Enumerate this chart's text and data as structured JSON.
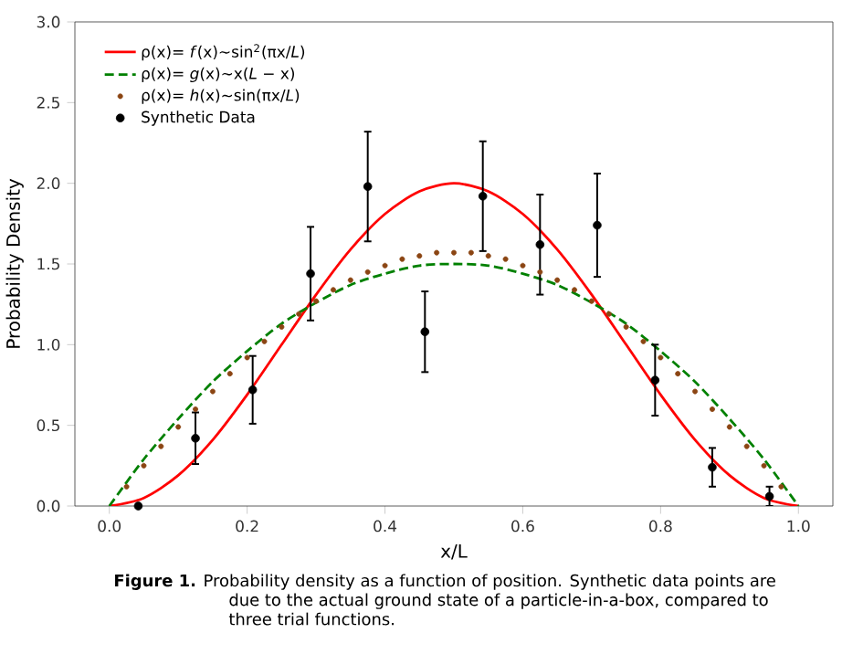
{
  "chart_data": {
    "type": "line",
    "xlabel": "x/L",
    "ylabel": "Probability Density",
    "xlim": [
      -0.05,
      1.05
    ],
    "ylim": [
      0,
      3
    ],
    "xticks": [
      {
        "value": 0,
        "label": "0.0"
      },
      {
        "value": 0.2,
        "label": "0.2"
      },
      {
        "value": 0.4,
        "label": "0.4"
      },
      {
        "value": 0.6,
        "label": "0.6"
      },
      {
        "value": 0.8,
        "label": "0.8"
      },
      {
        "value": 1,
        "label": "1.0"
      }
    ],
    "yticks": [
      {
        "value": 0,
        "label": "0.0"
      },
      {
        "value": 0.5,
        "label": "0.5"
      },
      {
        "value": 1,
        "label": "1.0"
      },
      {
        "value": 1.5,
        "label": "1.5"
      },
      {
        "value": 2,
        "label": "2.0"
      },
      {
        "value": 2.5,
        "label": "2.5"
      },
      {
        "value": 3,
        "label": "3.0"
      }
    ],
    "legend": "top left",
    "grid": false,
    "series": [
      {
        "name": "ρ(x)= *f*(x)∼sin$^{2}$(πx/*L*)",
        "color": "#ff0000",
        "line_style": "solid",
        "marker": "none",
        "x": [
          0,
          0.05,
          0.1,
          0.15,
          0.2,
          0.25,
          0.3,
          0.35,
          0.4,
          0.45,
          0.5,
          0.55,
          0.6,
          0.65,
          0.7,
          0.75,
          0.8,
          0.85,
          0.9,
          0.95,
          1
        ],
        "values": [
          0,
          0.05,
          0.19,
          0.41,
          0.69,
          1.0,
          1.31,
          1.59,
          1.81,
          1.95,
          2.0,
          1.95,
          1.81,
          1.59,
          1.31,
          1.0,
          0.69,
          0.41,
          0.19,
          0.05,
          0
        ]
      },
      {
        "name": "ρ(x)= *g*(x)∼x(*L* − x)",
        "color": "#008000",
        "line_style": "dashed",
        "marker": "none",
        "x": [
          0,
          0.05,
          0.1,
          0.15,
          0.2,
          0.25,
          0.3,
          0.35,
          0.4,
          0.45,
          0.5,
          0.55,
          0.6,
          0.65,
          0.7,
          0.75,
          0.8,
          0.85,
          0.9,
          0.95,
          1
        ],
        "values": [
          0,
          0.29,
          0.54,
          0.77,
          0.96,
          1.13,
          1.26,
          1.37,
          1.44,
          1.49,
          1.5,
          1.49,
          1.44,
          1.37,
          1.26,
          1.13,
          0.96,
          0.77,
          0.54,
          0.29,
          0
        ]
      },
      {
        "name": "ρ(x)= *h*(x)∼sin(πx/*L*)",
        "type": "scatter",
        "marker": "circle",
        "color": "#8b4513",
        "x": [
          0.025,
          0.05,
          0.075,
          0.1,
          0.125,
          0.15,
          0.175,
          0.2,
          0.225,
          0.25,
          0.275,
          0.3,
          0.325,
          0.35,
          0.375,
          0.4,
          0.425,
          0.45,
          0.475,
          0.5,
          0.525,
          0.55,
          0.575,
          0.6,
          0.625,
          0.65,
          0.675,
          0.7,
          0.725,
          0.75,
          0.775,
          0.8,
          0.825,
          0.85,
          0.875,
          0.9,
          0.925,
          0.95,
          0.975
        ],
        "values": [
          0.12,
          0.25,
          0.37,
          0.49,
          0.6,
          0.71,
          0.82,
          0.92,
          1.02,
          1.11,
          1.19,
          1.27,
          1.34,
          1.4,
          1.45,
          1.49,
          1.53,
          1.55,
          1.57,
          1.57,
          1.57,
          1.55,
          1.53,
          1.49,
          1.45,
          1.4,
          1.34,
          1.27,
          1.19,
          1.11,
          1.02,
          0.92,
          0.82,
          0.71,
          0.6,
          0.49,
          0.37,
          0.25,
          0.12
        ]
      },
      {
        "name": "Synthetic Data",
        "type": "scatter",
        "marker": "circle",
        "color": "#000000",
        "x": [
          0.042,
          0.125,
          0.208,
          0.292,
          0.375,
          0.458,
          0.542,
          0.625,
          0.708,
          0.792,
          0.875,
          0.958
        ],
        "values": [
          0.0,
          0.42,
          0.72,
          1.44,
          1.98,
          1.08,
          1.92,
          1.62,
          1.74,
          0.78,
          0.24,
          0.06
        ],
        "errors": [
          null,
          0.16,
          0.21,
          0.29,
          0.34,
          0.25,
          0.34,
          0.31,
          0.32,
          0.22,
          0.12,
          0.06
        ]
      }
    ],
    "annotations": [
      "**Figure 1.** Probability density as a function of position. Synthetic data points are due to the actual ground state of a particle-in-a-box, compared to three trial functions."
    ]
  }
}
